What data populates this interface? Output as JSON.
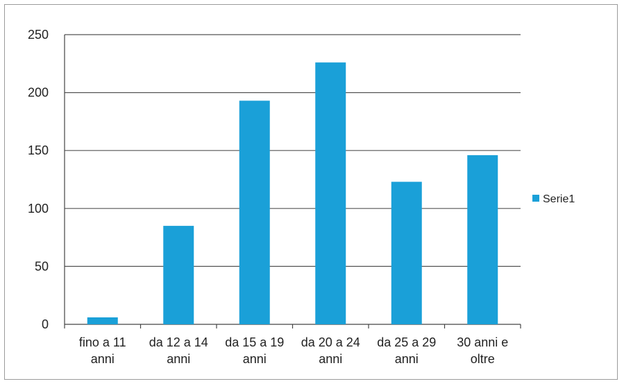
{
  "chart_data": {
    "type": "bar",
    "categories": [
      [
        "fino a 11",
        "anni"
      ],
      [
        "da 12 a 14",
        "anni"
      ],
      [
        "da 15 a 19",
        "anni"
      ],
      [
        "da 20 a 24",
        "anni"
      ],
      [
        "da 25 a 29",
        "anni"
      ],
      [
        "30 anni e",
        "oltre"
      ]
    ],
    "series": [
      {
        "name": "Serie1",
        "values": [
          6,
          85,
          193,
          226,
          123,
          146
        ]
      }
    ],
    "ylim": [
      0,
      250
    ],
    "yticks": [
      0,
      50,
      100,
      150,
      200,
      250
    ],
    "grid": true,
    "legend": "right",
    "bar_color": "#1aa0d8"
  }
}
